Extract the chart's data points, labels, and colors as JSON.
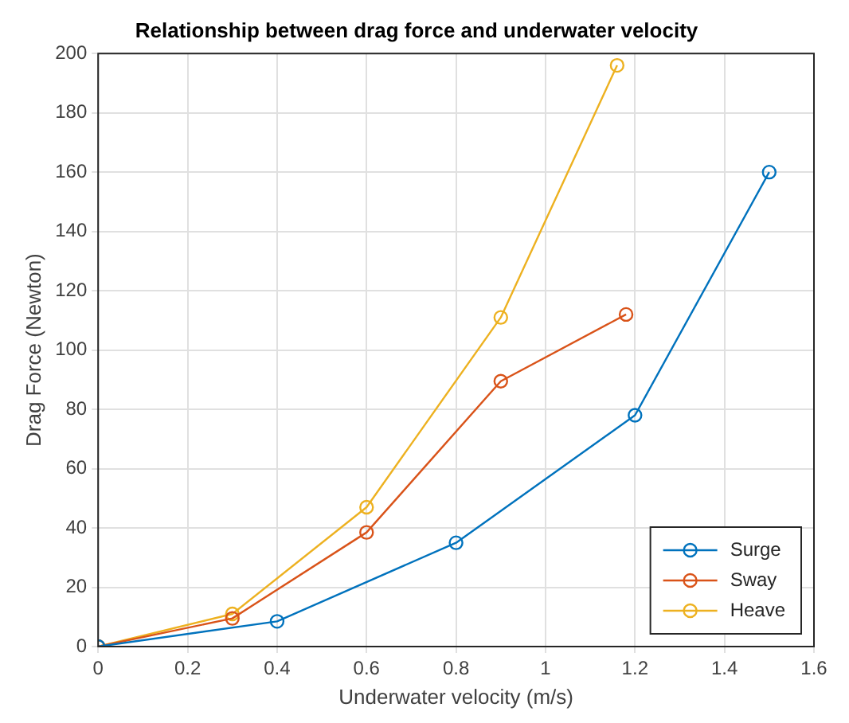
{
  "chart_data": {
    "type": "line",
    "title": "Relationship between drag force and underwater velocity",
    "xlabel": "Underwater velocity (m/s)",
    "ylabel": "Drag Force (Newton)",
    "xlim": [
      0,
      1.6
    ],
    "xticks": [
      0,
      0.2,
      0.4,
      0.6,
      0.8,
      1,
      1.2,
      1.4,
      1.6
    ],
    "ylim": [
      0,
      200
    ],
    "yticks": [
      0,
      20,
      40,
      60,
      80,
      100,
      120,
      140,
      160,
      180,
      200
    ],
    "grid": true,
    "legend": "bottom right",
    "marker": "circle",
    "line_style": "solid",
    "series": [
      {
        "name": "Surge",
        "color": "#0072bd",
        "x": [
          0,
          0.4,
          0.8,
          1.2,
          1.5
        ],
        "values": [
          0,
          8.5,
          35,
          78,
          160
        ]
      },
      {
        "name": "Sway",
        "color": "#d95319",
        "x": [
          0,
          0.3,
          0.6,
          0.9,
          1.18
        ],
        "values": [
          0,
          9.5,
          38.5,
          89.5,
          112
        ]
      },
      {
        "name": "Heave",
        "color": "#edb120",
        "x": [
          0,
          0.3,
          0.6,
          0.9,
          1.16
        ],
        "values": [
          0,
          11,
          47,
          111,
          196
        ]
      }
    ]
  }
}
